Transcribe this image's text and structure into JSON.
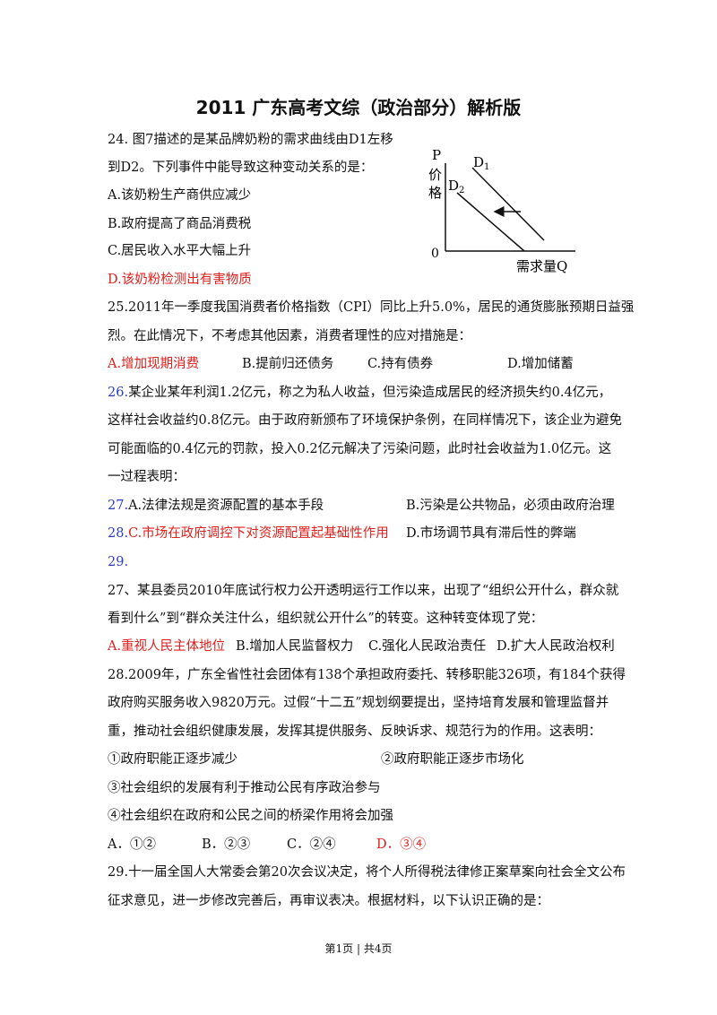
{
  "title": "2011 广东高考文综（政治部分）解析版",
  "q24": {
    "stem": [
      "24.    图7描述的是某品牌奶粉的需求曲线由D1左移",
      "到D2。下列事件中能导致这种变动关系的是："
    ],
    "options": [
      "A.该奶粉生产商供应减少",
      "B.政府提高了商品消费税",
      "C.居民收入水平大幅上升",
      "D.该奶粉检测出有害物质"
    ]
  },
  "figure": {
    "p": "P",
    "price": [
      "价",
      "格"
    ],
    "d1": "D",
    "d1_sub": "1",
    "d2": "D",
    "d2_sub": "2",
    "origin": "0",
    "q_axis": "需求量Q"
  },
  "q25": {
    "stem": [
      "25.2011年一季度我国消费者价格指数（CPI）同比上升5.0%，居民的通货膨胀预期日益强",
      "烈。在此情况下，不考虑其他因素，消费者理性的应对措施是："
    ],
    "options": [
      "A.增加现期消费",
      "B.提前归还债务",
      "C.持有债券",
      "D.增加储蓄"
    ]
  },
  "q26": {
    "number": "26.",
    "stem": [
      "某企业某年利润1.2亿元，称之为私人收益，但污染造成居民的经济损失约0.4亿元，",
      "这样社会收益约0.8亿元。由于政府新颁布了环境保护条例，在同样情况下，该企业为避免",
      "可能面临的0.4亿元的罚款，投入0.2亿元解决了污染问题，此时社会收益为1.0亿元。这",
      "一过程表明："
    ],
    "options": [
      {
        "number": "27.",
        "text": "A.法律法规是资源配置的基本手段"
      },
      {
        "text": "B.污染是公共物品，必须由政府治理"
      },
      {
        "number": "28.",
        "text": "C.市场在政府调控下对资源配置起基础性作用"
      },
      {
        "text": "D.市场调节具有滞后性的弊端"
      }
    ],
    "stray_number": "29."
  },
  "q27": {
    "stem": [
      "27、某县委员2010年底试行权力公开透明运行工作以来，出现了“组织公开什么，群众就",
      "看到什么”到“群众关注什么，组织就公开什么”的转变。这种转变体现了党："
    ],
    "options": [
      "A.重视人民主体地位",
      "B.增加人民监督权力",
      "C.强化人民政治责任",
      "D.扩大人民政治权利"
    ]
  },
  "q28": {
    "stem": [
      "28.2009年，广东全省性社会团体有138个承担政府委托、转移职能326项，有184个获得",
      "政府购买服务收入9820万元。过假“十二五”规划纲要提出，坚持培育发展和管理监督并",
      "重，推动社会组织健康发展，发挥其提供服务、反映诉求、规范行为的作用。这表明："
    ],
    "statements": [
      "①政府职能正逐步减少",
      "②政府职能正逐步市场化",
      "③社会组织的发展有利于推动公民有序政治参与",
      "④社会组织在政府和公民之间的桥梁作用将会加强"
    ],
    "options": [
      "A．①②",
      "B．②③",
      "C．②④",
      "D．③④"
    ]
  },
  "q29": {
    "stem": [
      "29.十一届全国人大常委会第20次会议决定，将个人所得税法律修正案草案向社会全文公布",
      "征求意见，进一步修改完善后，再审议表决。根据材料，以下认识正确的是："
    ]
  },
  "footer": "第1页  |  共4页"
}
